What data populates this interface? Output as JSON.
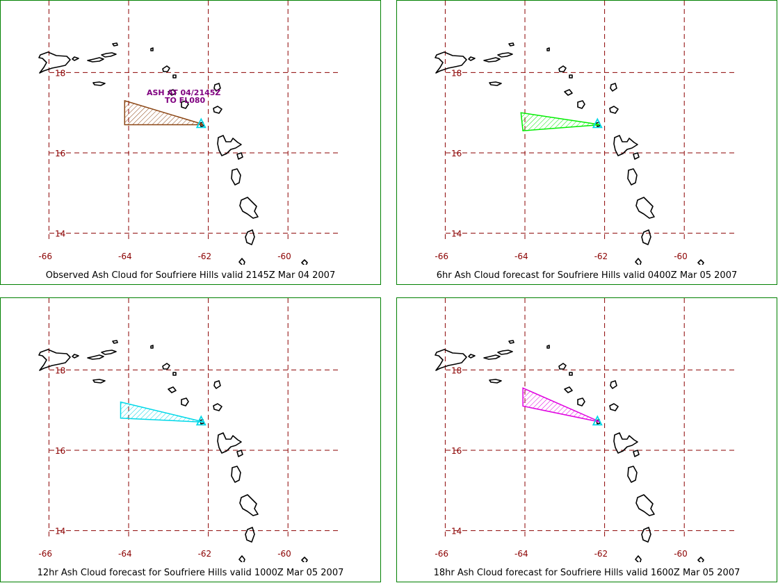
{
  "panels": [
    {
      "caption": "Observed Ash Cloud for Soufriere  Hills valid 2145Z Mar 04 2007",
      "ash_color": "#8b4513",
      "ash_polygon": [
        [
          -64.1,
          17.3
        ],
        [
          -64.1,
          16.7
        ],
        [
          -62.1,
          16.7
        ]
      ],
      "annotation": [
        "ASH AT 04/2145Z",
        "TO FL080"
      ],
      "annotation_color": "#800080"
    },
    {
      "caption": "6hr Ash Cloud forecast for Soufriere  Hills valid 0400Z Mar 05 2007",
      "ash_color": "#00ee00",
      "ash_polygon": [
        [
          -64.1,
          17.0
        ],
        [
          -64.05,
          16.55
        ],
        [
          -62.1,
          16.7
        ]
      ],
      "annotation": [],
      "annotation_color": ""
    },
    {
      "caption": "12hr Ash Cloud forecast for Soufriere  Hills valid 1000Z Mar 05 2007",
      "ash_color": "#00d8e8",
      "ash_polygon": [
        [
          -64.2,
          17.2
        ],
        [
          -64.2,
          16.8
        ],
        [
          -62.1,
          16.7
        ]
      ],
      "annotation": [],
      "annotation_color": ""
    },
    {
      "caption": "18hr Ash Cloud forecast for Soufriere  Hills valid 1600Z Mar 05 2007",
      "ash_color": "#e000e0",
      "ash_polygon": [
        [
          -64.05,
          17.55
        ],
        [
          -64.05,
          17.1
        ],
        [
          -62.1,
          16.7
        ]
      ],
      "annotation": [],
      "annotation_color": ""
    }
  ],
  "map": {
    "lon_ticks": [
      -66,
      -64,
      -62,
      -60
    ],
    "lon_labels": [
      "-66",
      "-64",
      "-62",
      "-60"
    ],
    "lat_ticks": [
      18,
      16,
      14
    ],
    "lat_labels": [
      "18",
      "16",
      "14"
    ],
    "volcano": {
      "name": "Soufriere Hills",
      "lon": -62.18,
      "lat": 16.72,
      "color": "#00d8e8"
    },
    "grid_color": "#8b0000",
    "border_color": "#008000"
  }
}
